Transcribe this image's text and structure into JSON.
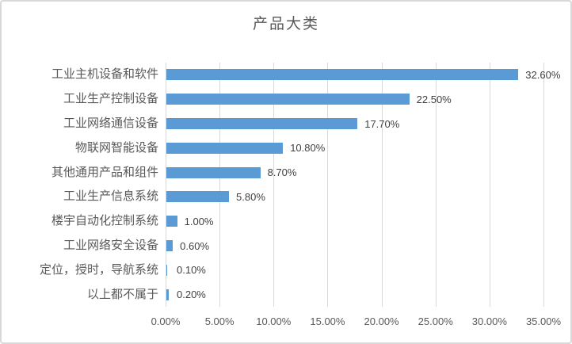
{
  "card": {
    "background": "#ffffff",
    "border_color": "#d9d9d9"
  },
  "chart_data": {
    "type": "bar",
    "orientation": "horizontal",
    "title": "产品大类",
    "categories": [
      "工业主机设备和软件",
      "工业生产控制设备",
      "工业网络通信设备",
      "物联网智能设备",
      "其他通用产品和组件",
      "工业生产信息系统",
      "楼宇自动化控制系统",
      "工业网络安全设备",
      "定位，授时，导航系统",
      "以上都不属于"
    ],
    "values": [
      32.6,
      22.5,
      17.7,
      10.8,
      8.7,
      5.8,
      1.0,
      0.6,
      0.1,
      0.2
    ],
    "value_labels": [
      "32.60%",
      "22.50%",
      "17.70%",
      "10.80%",
      "8.70%",
      "5.80%",
      "1.00%",
      "0.60%",
      "0.10%",
      "0.20%"
    ],
    "xlabel": "",
    "ylabel": "",
    "xlim": [
      0,
      35
    ],
    "x_ticks": [
      0,
      5,
      10,
      15,
      20,
      25,
      30,
      35
    ],
    "x_tick_labels": [
      "0.00%",
      "5.00%",
      "10.00%",
      "15.00%",
      "20.00%",
      "25.00%",
      "30.00%",
      "35.00%"
    ],
    "grid": "vertical",
    "legend_position": "none",
    "bar_color": "#5b9bd5",
    "gridline_color": "#d9d9d9",
    "title_color": "#595959",
    "category_label_color": "#595959",
    "value_label_color": "#404040",
    "axis_tick_color": "#595959"
  }
}
